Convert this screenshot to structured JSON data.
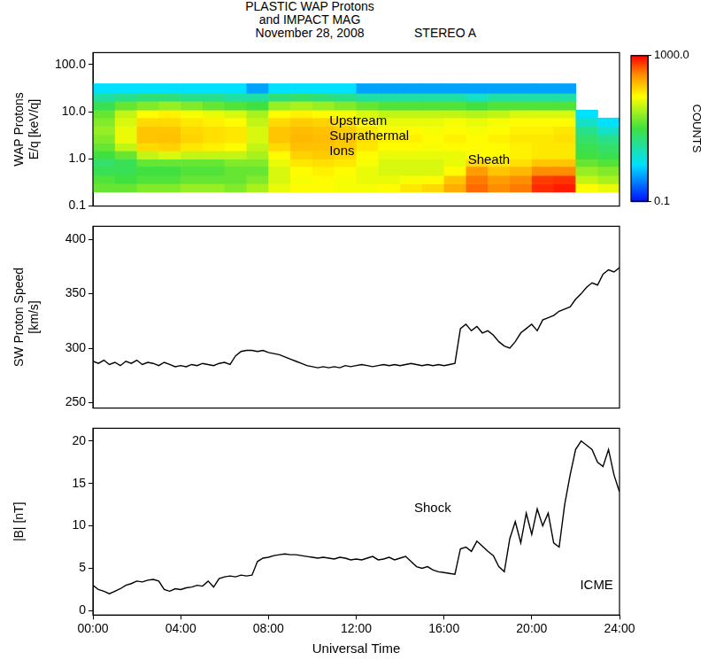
{
  "header": {
    "title": [
      "PLASTIC WAP Protons",
      "and IMPACT MAG"
    ],
    "subtitle": "November 28, 2008",
    "label": "STEREO A"
  },
  "chart_data": [
    {
      "type": "heatmap",
      "ylabel": [
        "WAP Protons",
        "E/q [keV/q]"
      ],
      "log": "y",
      "grid": false,
      "tick_labels": "y",
      "xlim": [
        0,
        24
      ],
      "ylim": [
        0.1,
        180
      ],
      "yticks": [
        0.1,
        {
          "value": 1,
          "label": "1.0"
        },
        {
          "value": 10,
          "label": "10.0"
        },
        {
          "value": 100,
          "label": "100.0"
        }
      ],
      "x_bins": [
        0,
        1,
        2,
        3,
        4,
        5,
        6,
        7,
        8,
        9,
        10,
        11,
        12,
        13,
        14,
        15,
        16,
        17,
        18,
        19,
        20,
        21,
        22,
        23,
        24
      ],
      "y_bins": [
        0.2,
        0.3,
        0.45,
        0.7,
        1.0,
        1.5,
        2.2,
        3.3,
        5,
        7.5,
        11,
        17,
        25,
        40
      ],
      "cells": [
        [
          15,
          12,
          8,
          6,
          10,
          15,
          20,
          25,
          20,
          15,
          8,
          3,
          1
        ],
        [
          15,
          10,
          8,
          8,
          15,
          40,
          60,
          60,
          50,
          40,
          15,
          4,
          1
        ],
        [
          20,
          12,
          10,
          15,
          40,
          120,
          150,
          150,
          120,
          80,
          20,
          5,
          1
        ],
        [
          20,
          12,
          10,
          15,
          50,
          130,
          160,
          150,
          120,
          90,
          25,
          5,
          1
        ],
        [
          25,
          15,
          12,
          15,
          40,
          100,
          130,
          120,
          100,
          70,
          20,
          4,
          1
        ],
        [
          25,
          15,
          12,
          15,
          40,
          90,
          110,
          110,
          90,
          60,
          15,
          4,
          1
        ],
        [
          20,
          15,
          15,
          20,
          40,
          80,
          100,
          100,
          80,
          50,
          12,
          3,
          1
        ],
        [
          30,
          20,
          15,
          20,
          30,
          40,
          50,
          50,
          40,
          30,
          10,
          3,
          0.5
        ],
        [
          60,
          50,
          50,
          60,
          80,
          120,
          150,
          150,
          120,
          80,
          25,
          5,
          1
        ],
        [
          80,
          70,
          80,
          100,
          130,
          160,
          180,
          170,
          140,
          90,
          30,
          6,
          1
        ],
        [
          80,
          80,
          90,
          110,
          140,
          160,
          170,
          160,
          130,
          80,
          25,
          5,
          1
        ],
        [
          70,
          70,
          80,
          100,
          120,
          140,
          150,
          140,
          110,
          70,
          20,
          4,
          1
        ],
        [
          70,
          60,
          60,
          70,
          80,
          100,
          110,
          100,
          80,
          50,
          15,
          3,
          0.5
        ],
        [
          80,
          60,
          50,
          50,
          60,
          80,
          90,
          80,
          60,
          40,
          12,
          3,
          0.5
        ],
        [
          100,
          70,
          50,
          50,
          60,
          80,
          90,
          80,
          60,
          40,
          12,
          3,
          0.5
        ],
        [
          120,
          80,
          50,
          50,
          60,
          70,
          80,
          70,
          60,
          40,
          12,
          3,
          0.5
        ],
        [
          200,
          150,
          80,
          60,
          60,
          80,
          90,
          80,
          70,
          40,
          12,
          3,
          0.5
        ],
        [
          400,
          350,
          250,
          120,
          80,
          80,
          80,
          70,
          60,
          35,
          10,
          2,
          0.5
        ],
        [
          300,
          250,
          150,
          100,
          80,
          80,
          90,
          80,
          70,
          40,
          12,
          3,
          0.5
        ],
        [
          350,
          300,
          180,
          110,
          90,
          90,
          100,
          90,
          80,
          50,
          12,
          3,
          0.5
        ],
        [
          700,
          600,
          300,
          150,
          100,
          100,
          100,
          90,
          80,
          50,
          12,
          3,
          0.5
        ],
        [
          800,
          650,
          300,
          150,
          100,
          100,
          110,
          100,
          80,
          50,
          12,
          3,
          0.5
        ],
        [
          80,
          40,
          25,
          15,
          10,
          8,
          6,
          4,
          2,
          1,
          null,
          null,
          null
        ],
        [
          60,
          30,
          20,
          12,
          8,
          6,
          4,
          2,
          1,
          null,
          null,
          null,
          null
        ]
      ],
      "colorbar": {
        "range": [
          0.1,
          1000
        ],
        "ticks": [
          0.1,
          {
            "value": 1000,
            "label": "1000.0"
          }
        ],
        "label": "COUNTS",
        "log": true
      },
      "annotations": [
        "Upstream Suprathermal Ions",
        "Sheath"
      ]
    },
    {
      "type": "line",
      "ylabel": [
        "SW Proton Speed",
        "[km/s]"
      ],
      "grid": false,
      "tick_labels": "y",
      "xlim": [
        0,
        24
      ],
      "ylim": [
        245,
        412
      ],
      "yticks": [
        250,
        300,
        350,
        400
      ],
      "x": [
        0,
        0.25,
        0.5,
        0.75,
        1,
        1.25,
        1.5,
        1.75,
        2,
        2.25,
        2.5,
        2.75,
        3,
        3.25,
        3.5,
        3.75,
        4,
        4.25,
        4.5,
        4.75,
        5,
        5.25,
        5.5,
        5.75,
        6,
        6.25,
        6.5,
        6.75,
        7,
        7.25,
        7.5,
        7.75,
        8,
        8.25,
        8.5,
        8.75,
        9,
        9.25,
        9.5,
        9.75,
        10,
        10.25,
        10.5,
        10.75,
        11,
        11.25,
        11.5,
        11.75,
        12,
        12.25,
        12.5,
        12.75,
        13,
        13.25,
        13.5,
        13.75,
        14,
        14.25,
        14.5,
        14.75,
        15,
        15.25,
        15.5,
        15.75,
        16,
        16.25,
        16.5,
        16.75,
        17,
        17.25,
        17.5,
        17.75,
        18,
        18.25,
        18.5,
        18.75,
        19,
        19.25,
        19.5,
        19.75,
        20,
        20.25,
        20.5,
        20.75,
        21,
        21.25,
        21.5,
        21.75,
        22,
        22.25,
        22.5,
        22.75,
        23,
        23.25,
        23.5,
        23.75,
        24
      ],
      "series": [
        {
          "color": "#000000",
          "values": [
            288,
            286,
            289,
            285,
            287,
            284,
            288,
            286,
            289,
            285,
            287,
            286,
            284,
            287,
            285,
            283,
            284,
            283,
            285,
            284,
            286,
            285,
            284,
            286,
            287,
            285,
            293,
            297,
            298,
            298,
            297,
            298,
            296,
            295,
            294,
            292,
            290,
            288,
            286,
            284,
            283,
            282,
            283,
            282,
            283,
            282,
            284,
            283,
            284,
            285,
            284,
            283,
            284,
            285,
            284,
            285,
            284,
            285,
            286,
            285,
            284,
            285,
            284,
            285,
            284,
            285,
            286,
            318,
            322,
            316,
            320,
            314,
            316,
            312,
            306,
            302,
            300,
            306,
            314,
            318,
            322,
            316,
            326,
            328,
            330,
            334,
            336,
            338,
            345,
            350,
            356,
            360,
            358,
            368,
            372,
            370,
            374
          ]
        }
      ]
    },
    {
      "type": "line",
      "ylabel": "|B| [nT]",
      "xlabel": "Universal Time",
      "grid": false,
      "xlim": [
        0,
        24
      ],
      "xticks": [
        {
          "value": 0,
          "label": "00:00"
        },
        {
          "value": 4,
          "label": "04:00"
        },
        {
          "value": 8,
          "label": "08:00"
        },
        {
          "value": 12,
          "label": "12:00"
        },
        {
          "value": 16,
          "label": "16:00"
        },
        {
          "value": 20,
          "label": "20:00"
        },
        {
          "value": 24,
          "label": "24:00"
        }
      ],
      "ylim": [
        -0.5,
        21.5
      ],
      "yticks": [
        0,
        5,
        10,
        15,
        20
      ],
      "x": [
        0,
        0.25,
        0.5,
        0.75,
        1,
        1.25,
        1.5,
        1.75,
        2,
        2.25,
        2.5,
        2.75,
        3,
        3.25,
        3.5,
        3.75,
        4,
        4.25,
        4.5,
        4.75,
        5,
        5.25,
        5.5,
        5.75,
        6,
        6.25,
        6.5,
        6.75,
        7,
        7.25,
        7.5,
        7.75,
        8,
        8.25,
        8.5,
        8.75,
        9,
        9.25,
        9.5,
        9.75,
        10,
        10.25,
        10.5,
        10.75,
        11,
        11.25,
        11.5,
        11.75,
        12,
        12.25,
        12.5,
        12.75,
        13,
        13.25,
        13.5,
        13.75,
        14,
        14.25,
        14.5,
        14.75,
        15,
        15.25,
        15.5,
        15.75,
        16,
        16.25,
        16.5,
        16.75,
        17,
        17.25,
        17.5,
        17.75,
        18,
        18.25,
        18.5,
        18.75,
        19,
        19.25,
        19.5,
        19.75,
        20,
        20.25,
        20.5,
        20.75,
        21,
        21.25,
        21.5,
        21.75,
        22,
        22.25,
        22.5,
        22.75,
        23,
        23.25,
        23.5,
        23.75,
        24
      ],
      "series": [
        {
          "color": "#000000",
          "values": [
            3.0,
            2.5,
            2.3,
            2.0,
            2.3,
            2.6,
            3.0,
            3.2,
            3.5,
            3.4,
            3.6,
            3.7,
            3.5,
            2.5,
            2.3,
            2.6,
            2.5,
            2.7,
            2.8,
            3.0,
            2.9,
            3.5,
            2.8,
            3.8,
            4.0,
            4.1,
            4.0,
            4.2,
            4.1,
            4.2,
            5.8,
            6.2,
            6.3,
            6.5,
            6.6,
            6.7,
            6.6,
            6.6,
            6.5,
            6.4,
            6.3,
            6.2,
            6.3,
            6.2,
            6.1,
            6.3,
            6.2,
            6.0,
            6.1,
            6.0,
            6.2,
            6.4,
            6.0,
            6.1,
            6.3,
            6.0,
            6.2,
            6.4,
            5.8,
            5.2,
            5.0,
            5.2,
            4.8,
            4.6,
            4.5,
            4.4,
            4.3,
            7.3,
            7.5,
            7.0,
            8.2,
            7.6,
            7.0,
            6.5,
            5.2,
            4.6,
            8.5,
            10.5,
            8.0,
            11.5,
            9.0,
            12.0,
            10.0,
            11.5,
            8.0,
            7.5,
            12.5,
            16.0,
            19.0,
            20.0,
            19.5,
            19.0,
            17.5,
            17.0,
            19.0,
            16.0,
            14.0
          ]
        }
      ],
      "annotations": [
        "Shock",
        "ICME"
      ]
    }
  ]
}
